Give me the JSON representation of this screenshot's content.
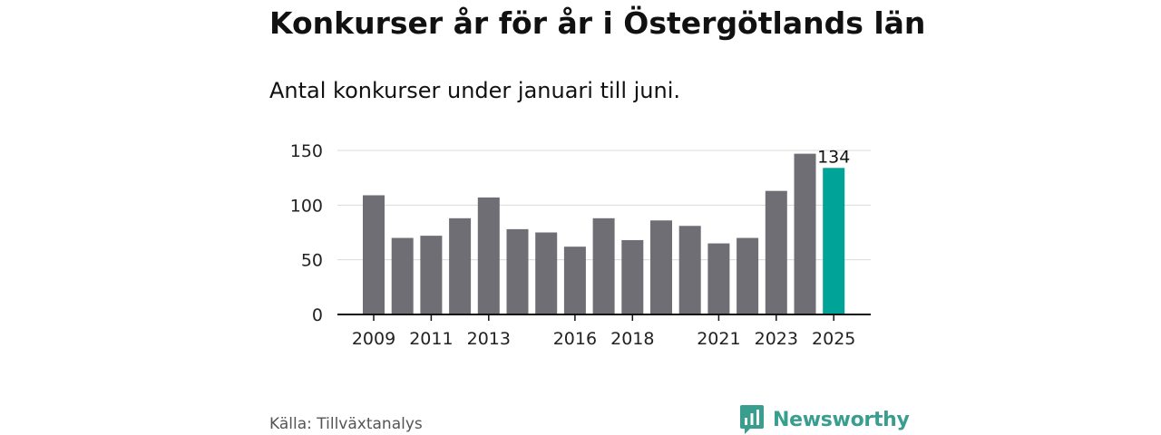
{
  "title": "Konkurser år för år i Östergötlands län",
  "subtitle": "Antal konkurser under januari till juni.",
  "source": "Källa: Tillväxtanalys",
  "brand": {
    "name": "Newsworthy",
    "color": "#3a9e8f",
    "icon": "bar-chart-speech-bubble-icon"
  },
  "colors": {
    "bar": "#6f6e74",
    "highlight": "#00a398",
    "grid": "#d9d9d9",
    "axis": "#111111"
  },
  "chart_data": {
    "type": "bar",
    "categories": [
      "2009",
      "2010",
      "2011",
      "2012",
      "2013",
      "2014",
      "2015",
      "2016",
      "2017",
      "2018",
      "2019",
      "2020",
      "2021",
      "2022",
      "2023",
      "2024",
      "2025"
    ],
    "values": [
      109,
      70,
      72,
      88,
      107,
      78,
      75,
      62,
      88,
      68,
      86,
      81,
      65,
      70,
      113,
      147,
      134
    ],
    "x_tick_labels": [
      "2009",
      "2011",
      "2013",
      "2016",
      "2018",
      "2021",
      "2023",
      "2025"
    ],
    "y_ticks": [
      0,
      50,
      100,
      150
    ],
    "ylim": [
      0,
      150
    ],
    "highlight_index": 16,
    "data_labels": [
      {
        "index": 16,
        "text": "134"
      }
    ],
    "grid": true,
    "legend": "none",
    "xlabel": "",
    "ylabel": ""
  }
}
